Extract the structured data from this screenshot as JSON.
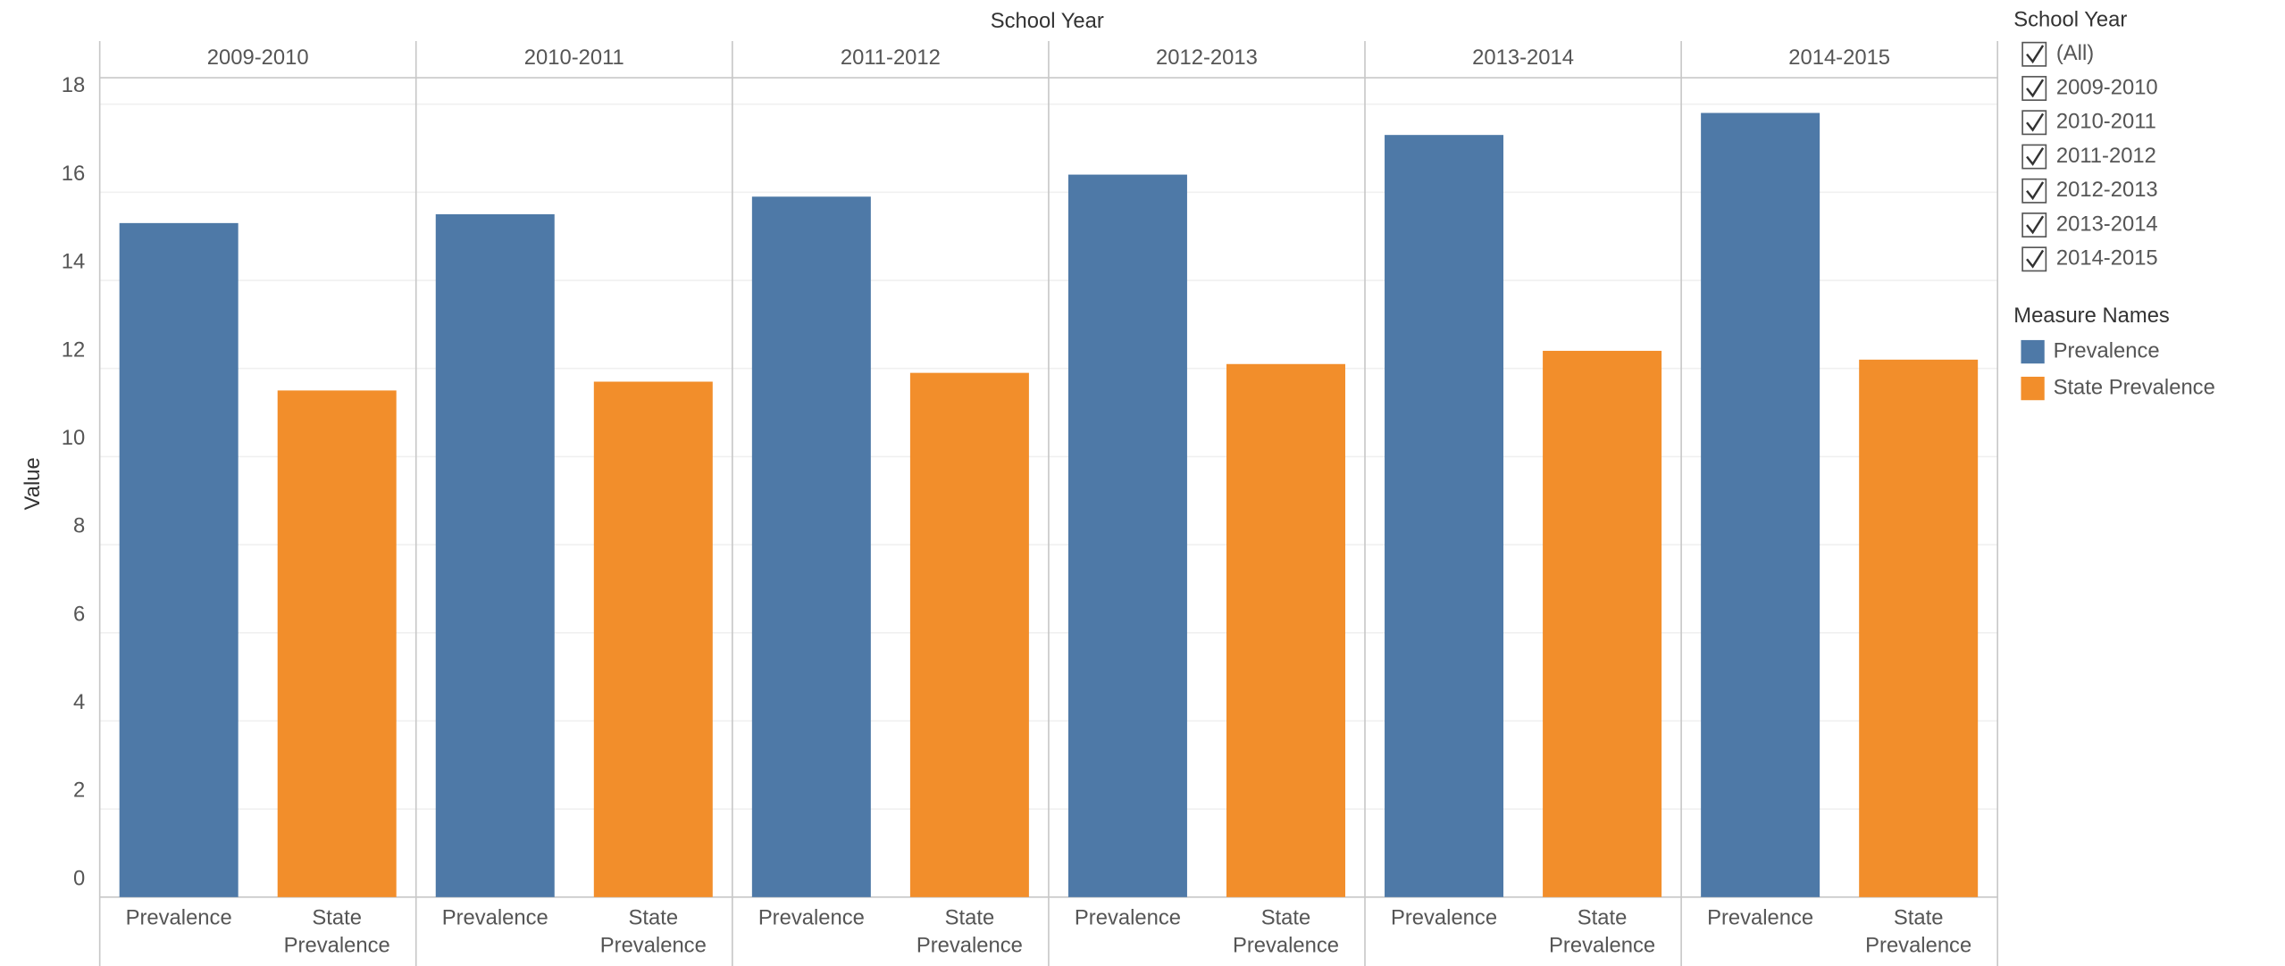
{
  "chart_data": {
    "type": "bar",
    "title": "School Year",
    "y_label": "Value",
    "categories": [
      "2009-2010",
      "2010-2011",
      "2011-2012",
      "2012-2013",
      "2013-2014",
      "2014-2015"
    ],
    "series": [
      {
        "name": "Prevalence",
        "color": "#4e79a7",
        "values": [
          15.3,
          15.5,
          15.9,
          16.4,
          17.3,
          17.8
        ]
      },
      {
        "name": "State Prevalence",
        "color": "#f28e2b",
        "values": [
          11.5,
          11.7,
          11.9,
          12.1,
          12.4,
          12.2
        ]
      }
    ],
    "ylim": [
      0,
      18.6
    ],
    "yticks": [
      0,
      2,
      4,
      6,
      8,
      10,
      12,
      14,
      16,
      18
    ],
    "grid": true,
    "legend_title": "Measure Names"
  },
  "filter": {
    "title": "School Year",
    "items": [
      "(All)",
      "2009-2010",
      "2010-2011",
      "2011-2012",
      "2012-2013",
      "2013-2014",
      "2014-2015"
    ]
  }
}
